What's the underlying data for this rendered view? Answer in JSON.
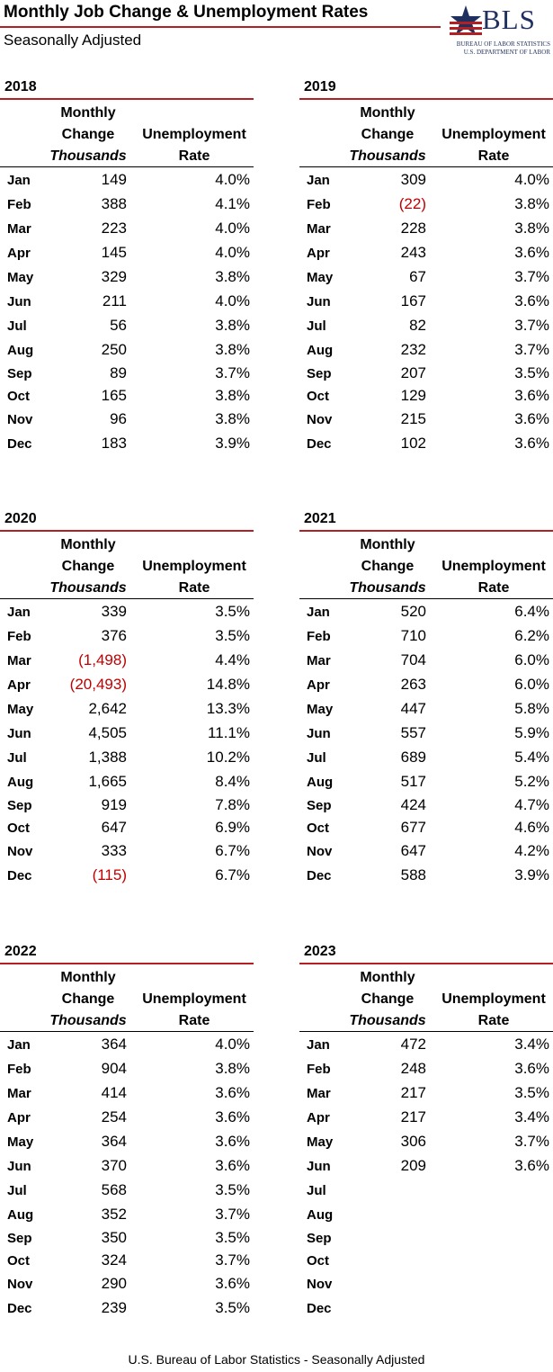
{
  "header": {
    "title": "Monthly Job Change & Unemployment Rates",
    "subtitle": "Seasonally Adjusted",
    "logo_text": "BLS",
    "logo_line1": "BUREAU OF LABOR STATISTICS",
    "logo_line2": "U.S. DEPARTMENT OF LABOR"
  },
  "columns": {
    "change_line1": "Monthly",
    "change_line2": "Change",
    "change_line3": "Thousands",
    "rate_line1": "Unemployment",
    "rate_line2": "Rate"
  },
  "colors": {
    "accent_rule": "#b32024",
    "negative": "#c00000",
    "logo_blue": "#1f2f5e"
  },
  "years": [
    {
      "year": "2018",
      "rows": [
        {
          "month": "Jan",
          "change": "149",
          "rate": "4.0%"
        },
        {
          "month": "Feb",
          "change": "388",
          "rate": "4.1%"
        },
        {
          "month": "Mar",
          "change": "223",
          "rate": "4.0%"
        },
        {
          "month": "Apr",
          "change": "145",
          "rate": "4.0%"
        },
        {
          "month": "May",
          "change": "329",
          "rate": "3.8%"
        },
        {
          "month": "Jun",
          "change": "211",
          "rate": "4.0%"
        },
        {
          "month": "Jul",
          "change": "56",
          "rate": "3.8%"
        },
        {
          "month": "Aug",
          "change": "250",
          "rate": "3.8%"
        },
        {
          "month": "Sep",
          "change": "89",
          "rate": "3.7%"
        },
        {
          "month": "Oct",
          "change": "165",
          "rate": "3.8%"
        },
        {
          "month": "Nov",
          "change": "96",
          "rate": "3.8%"
        },
        {
          "month": "Dec",
          "change": "183",
          "rate": "3.9%"
        }
      ]
    },
    {
      "year": "2019",
      "rows": [
        {
          "month": "Jan",
          "change": "309",
          "rate": "4.0%"
        },
        {
          "month": "Feb",
          "change": "(22)",
          "rate": "3.8%",
          "negative": true
        },
        {
          "month": "Mar",
          "change": "228",
          "rate": "3.8%"
        },
        {
          "month": "Apr",
          "change": "243",
          "rate": "3.6%"
        },
        {
          "month": "May",
          "change": "67",
          "rate": "3.7%"
        },
        {
          "month": "Jun",
          "change": "167",
          "rate": "3.6%"
        },
        {
          "month": "Jul",
          "change": "82",
          "rate": "3.7%"
        },
        {
          "month": "Aug",
          "change": "232",
          "rate": "3.7%"
        },
        {
          "month": "Sep",
          "change": "207",
          "rate": "3.5%"
        },
        {
          "month": "Oct",
          "change": "129",
          "rate": "3.6%"
        },
        {
          "month": "Nov",
          "change": "215",
          "rate": "3.6%"
        },
        {
          "month": "Dec",
          "change": "102",
          "rate": "3.6%"
        }
      ]
    },
    {
      "year": "2020",
      "rows": [
        {
          "month": "Jan",
          "change": "339",
          "rate": "3.5%"
        },
        {
          "month": "Feb",
          "change": "376",
          "rate": "3.5%"
        },
        {
          "month": "Mar",
          "change": "(1,498)",
          "rate": "4.4%",
          "negative": true
        },
        {
          "month": "Apr",
          "change": "(20,493)",
          "rate": "14.8%",
          "negative": true
        },
        {
          "month": "May",
          "change": "2,642",
          "rate": "13.3%"
        },
        {
          "month": "Jun",
          "change": "4,505",
          "rate": "11.1%"
        },
        {
          "month": "Jul",
          "change": "1,388",
          "rate": "10.2%"
        },
        {
          "month": "Aug",
          "change": "1,665",
          "rate": "8.4%"
        },
        {
          "month": "Sep",
          "change": "919",
          "rate": "7.8%"
        },
        {
          "month": "Oct",
          "change": "647",
          "rate": "6.9%"
        },
        {
          "month": "Nov",
          "change": "333",
          "rate": "6.7%"
        },
        {
          "month": "Dec",
          "change": "(115)",
          "rate": "6.7%",
          "negative": true
        }
      ]
    },
    {
      "year": "2021",
      "rows": [
        {
          "month": "Jan",
          "change": "520",
          "rate": "6.4%"
        },
        {
          "month": "Feb",
          "change": "710",
          "rate": "6.2%"
        },
        {
          "month": "Mar",
          "change": "704",
          "rate": "6.0%"
        },
        {
          "month": "Apr",
          "change": "263",
          "rate": "6.0%"
        },
        {
          "month": "May",
          "change": "447",
          "rate": "5.8%"
        },
        {
          "month": "Jun",
          "change": "557",
          "rate": "5.9%"
        },
        {
          "month": "Jul",
          "change": "689",
          "rate": "5.4%"
        },
        {
          "month": "Aug",
          "change": "517",
          "rate": "5.2%"
        },
        {
          "month": "Sep",
          "change": "424",
          "rate": "4.7%"
        },
        {
          "month": "Oct",
          "change": "677",
          "rate": "4.6%"
        },
        {
          "month": "Nov",
          "change": "647",
          "rate": "4.2%"
        },
        {
          "month": "Dec",
          "change": "588",
          "rate": "3.9%"
        }
      ]
    },
    {
      "year": "2022",
      "rows": [
        {
          "month": "Jan",
          "change": "364",
          "rate": "4.0%"
        },
        {
          "month": "Feb",
          "change": "904",
          "rate": "3.8%"
        },
        {
          "month": "Mar",
          "change": "414",
          "rate": "3.6%"
        },
        {
          "month": "Apr",
          "change": "254",
          "rate": "3.6%"
        },
        {
          "month": "May",
          "change": "364",
          "rate": "3.6%"
        },
        {
          "month": "Jun",
          "change": "370",
          "rate": "3.6%"
        },
        {
          "month": "Jul",
          "change": "568",
          "rate": "3.5%"
        },
        {
          "month": "Aug",
          "change": "352",
          "rate": "3.7%"
        },
        {
          "month": "Sep",
          "change": "350",
          "rate": "3.5%"
        },
        {
          "month": "Oct",
          "change": "324",
          "rate": "3.7%"
        },
        {
          "month": "Nov",
          "change": "290",
          "rate": "3.6%"
        },
        {
          "month": "Dec",
          "change": "239",
          "rate": "3.5%"
        }
      ]
    },
    {
      "year": "2023",
      "rows": [
        {
          "month": "Jan",
          "change": "472",
          "rate": "3.4%"
        },
        {
          "month": "Feb",
          "change": "248",
          "rate": "3.6%"
        },
        {
          "month": "Mar",
          "change": "217",
          "rate": "3.5%"
        },
        {
          "month": "Apr",
          "change": "217",
          "rate": "3.4%"
        },
        {
          "month": "May",
          "change": "306",
          "rate": "3.7%"
        },
        {
          "month": "Jun",
          "change": "209",
          "rate": "3.6%"
        },
        {
          "month": "Jul",
          "change": "",
          "rate": ""
        },
        {
          "month": "Aug",
          "change": "",
          "rate": ""
        },
        {
          "month": "Sep",
          "change": "",
          "rate": ""
        },
        {
          "month": "Oct",
          "change": "",
          "rate": ""
        },
        {
          "month": "Nov",
          "change": "",
          "rate": ""
        },
        {
          "month": "Dec",
          "change": "",
          "rate": ""
        }
      ]
    }
  ],
  "footer": "U.S. Bureau of Labor Statistics - Seasonally Adjusted"
}
